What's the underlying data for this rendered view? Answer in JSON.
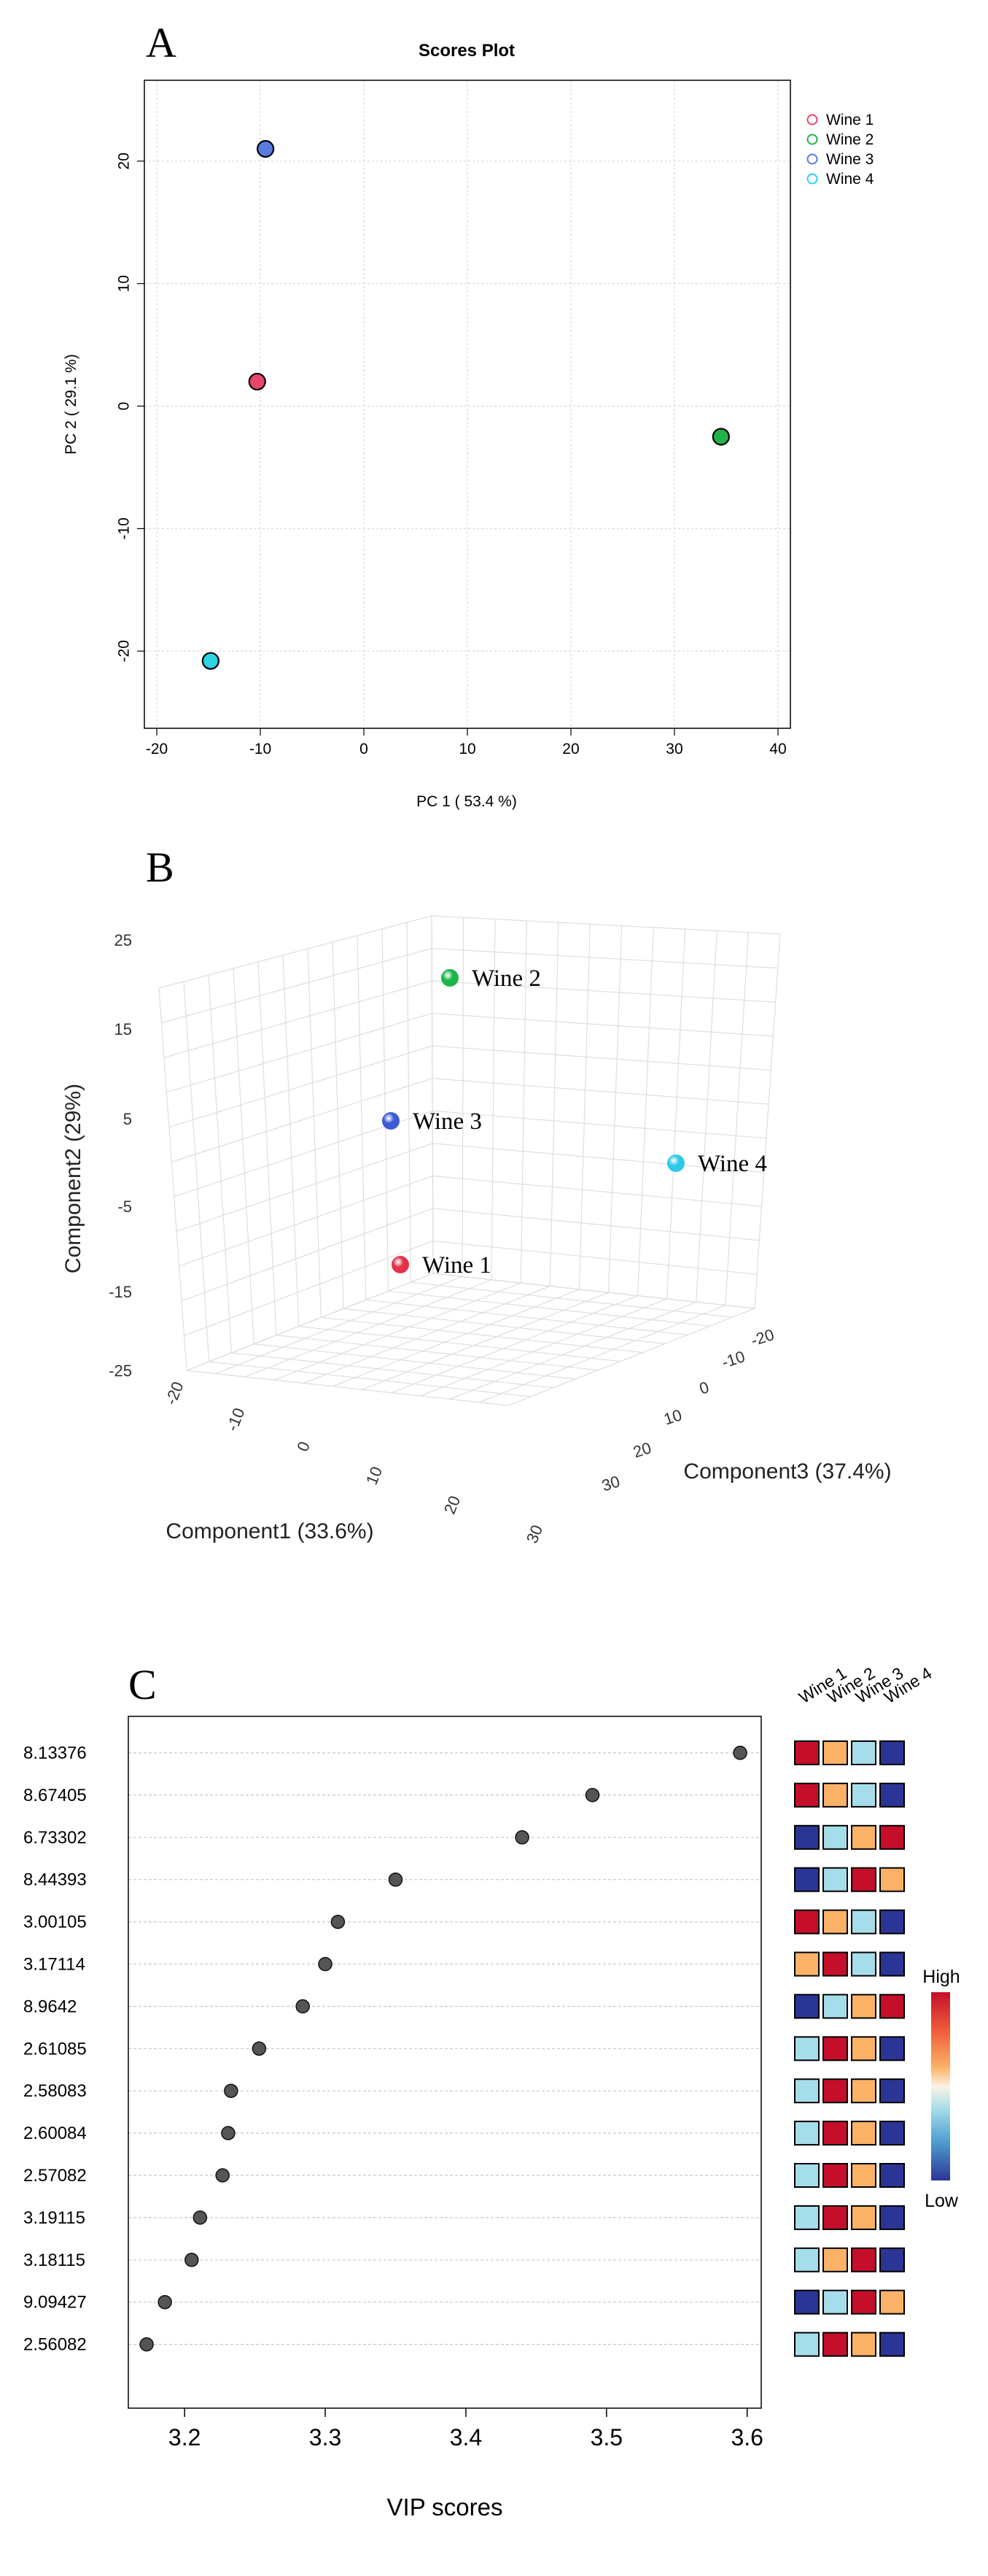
{
  "chart_data": [
    {
      "panel": "A",
      "type": "scatter",
      "title": "Scores Plot",
      "xlabel": "PC 1 ( 53.4 %)",
      "ylabel": "PC 2 ( 29.1 %)",
      "xlim": [
        -20,
        40
      ],
      "ylim": [
        -25,
        25
      ],
      "xticks": [
        "-20",
        "-10",
        "0",
        "10",
        "20",
        "30",
        "40"
      ],
      "yticks": [
        "-20",
        "-10",
        "0",
        "10",
        "20"
      ],
      "grid": true,
      "legend_position": "top-right (outside plot)",
      "series": [
        {
          "name": "Wine 1",
          "color": "#E8466A",
          "points": [
            [
              -10.3,
              2.0
            ]
          ]
        },
        {
          "name": "Wine 2",
          "color": "#22B24C",
          "points": [
            [
              34.5,
              -2.5
            ]
          ]
        },
        {
          "name": "Wine 3",
          "color": "#5B7BE0",
          "points": [
            [
              -9.5,
              21.0
            ]
          ]
        },
        {
          "name": "Wine 4",
          "color": "#2ED3E6",
          "points": [
            [
              -14.8,
              -20.8
            ]
          ]
        }
      ]
    },
    {
      "panel": "B",
      "type": "scatter3d",
      "xlabel": "Component1 (33.6%)",
      "ylabel": "Component2 (29%)",
      "zlabel": "Component3 (37.4%)",
      "yticks": [
        "25",
        "15",
        "5",
        "-5",
        "-15",
        "-25"
      ],
      "xticks": [
        "-20",
        "-10",
        "0",
        "10",
        "20",
        "30"
      ],
      "zticks": [
        "-20",
        "-10",
        "0",
        "10",
        "20",
        "30"
      ],
      "points": [
        {
          "label": "Wine 2",
          "color": "#1CB54A"
        },
        {
          "label": "Wine 3",
          "color": "#3D5BD6"
        },
        {
          "label": "Wine 4",
          "color": "#2CC9E6"
        },
        {
          "label": "Wine 1",
          "color": "#E23248"
        }
      ]
    },
    {
      "panel": "C",
      "type": "dot",
      "xlabel": "VIP scores",
      "xlim": [
        3.16,
        3.61
      ],
      "xticks": [
        "3.2",
        "3.3",
        "3.4",
        "3.5",
        "3.6"
      ],
      "categories": [
        "8.13376",
        "8.67405",
        "6.73302",
        "8.44393",
        "3.00105",
        "3.17114",
        "8.9642",
        "2.61085",
        "2.58083",
        "2.60084",
        "2.57082",
        "3.19115",
        "3.18115",
        "9.09427",
        "2.56082"
      ],
      "values": [
        3.595,
        3.49,
        3.44,
        3.35,
        3.309,
        3.3,
        3.284,
        3.253,
        3.233,
        3.231,
        3.227,
        3.211,
        3.205,
        3.186,
        3.173
      ],
      "heatmap": {
        "columns": [
          "Wine 1",
          "Wine 2",
          "Wine 3",
          "Wine 4"
        ],
        "color_scale": {
          "high_label": "High",
          "low_label": "Low"
        },
        "levels_legend": "1 = Low (blue), 2 = light blue, 3 = orange, 4 = High (red)",
        "rows": [
          [
            4,
            3,
            2,
            1
          ],
          [
            4,
            3,
            2,
            1
          ],
          [
            1,
            2,
            3,
            4
          ],
          [
            1,
            2,
            4,
            3
          ],
          [
            4,
            3,
            2,
            1
          ],
          [
            3,
            4,
            2,
            1
          ],
          [
            1,
            2,
            3,
            4
          ],
          [
            2,
            4,
            3,
            1
          ],
          [
            2,
            4,
            3,
            1
          ],
          [
            2,
            4,
            3,
            1
          ],
          [
            2,
            4,
            3,
            1
          ],
          [
            2,
            4,
            3,
            1
          ],
          [
            2,
            3,
            4,
            1
          ],
          [
            1,
            2,
            4,
            3
          ],
          [
            2,
            4,
            3,
            1
          ]
        ],
        "level_colors": {
          "1": "#2B3596",
          "2": "#A6DDEA",
          "3": "#FBB266",
          "4": "#C50F2A"
        }
      }
    }
  ],
  "panel_letters": {
    "a": "A",
    "b": "B",
    "c": "C"
  }
}
